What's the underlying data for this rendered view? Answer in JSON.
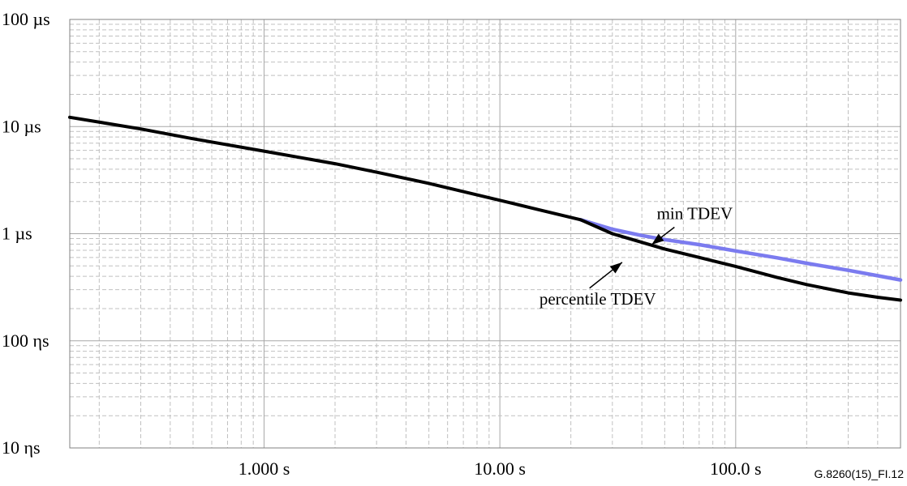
{
  "chart_data": {
    "type": "line",
    "title": "",
    "xlabel": "",
    "ylabel": "",
    "x_scale": "log",
    "y_scale": "log",
    "x_unit": "s",
    "y_unit": "s",
    "xlim": [
      0.15,
      500
    ],
    "ylim": [
      1e-08,
      0.0001
    ],
    "grid": true,
    "x_ticks": [
      {
        "value": 1,
        "label": "1.000 s"
      },
      {
        "value": 10,
        "label": "10.00 s"
      },
      {
        "value": 100,
        "label": "100.0 s"
      }
    ],
    "y_ticks": [
      {
        "value": 0.0001,
        "label": "100 µs"
      },
      {
        "value": 1e-05,
        "label": "10 µs"
      },
      {
        "value": 1e-06,
        "label": "1 µs"
      },
      {
        "value": 1e-07,
        "label": "100 ηs"
      },
      {
        "value": 1e-08,
        "label": "10 ηs"
      }
    ],
    "series": [
      {
        "color": "#7b7bef",
        "points": [
          [
            22,
            1.35e-06
          ],
          [
            30,
            1.1e-06
          ],
          [
            40,
            9.6e-07
          ],
          [
            50,
            8.8e-07
          ],
          [
            70,
            7.9e-07
          ],
          [
            100,
            6.9e-07
          ],
          [
            150,
            5.95e-07
          ],
          [
            200,
            5.3e-07
          ],
          [
            300,
            4.55e-07
          ],
          [
            400,
            4.05e-07
          ],
          [
            500,
            3.7e-07
          ]
        ]
      },
      {
        "color": "#000000",
        "points": [
          [
            0.15,
            1.22e-05
          ],
          [
            0.3,
            9.5e-06
          ],
          [
            0.5,
            7.7e-06
          ],
          [
            1,
            5.9e-06
          ],
          [
            2,
            4.5e-06
          ],
          [
            3,
            3.75e-06
          ],
          [
            5,
            2.95e-06
          ],
          [
            10,
            2.05e-06
          ],
          [
            15,
            1.65e-06
          ],
          [
            22,
            1.35e-06
          ],
          [
            30,
            1e-06
          ],
          [
            40,
            8.3e-07
          ],
          [
            50,
            7.2e-07
          ],
          [
            70,
            6e-07
          ],
          [
            100,
            4.95e-07
          ],
          [
            150,
            3.9e-07
          ],
          [
            200,
            3.35e-07
          ],
          [
            300,
            2.8e-07
          ],
          [
            400,
            2.55e-07
          ],
          [
            500,
            2.4e-07
          ]
        ]
      }
    ],
    "annotations": [
      {
        "text": "min TDEV",
        "arrow_from": [
          55,
          1.15e-06
        ],
        "arrow_to": [
          44,
          7.9e-07
        ]
      },
      {
        "text": "percentile TDEV",
        "arrow_from": [
          24,
          3.1e-07
        ],
        "arrow_to": [
          33,
          5.4e-07
        ]
      }
    ]
  },
  "figure_ref": "G.8260(15)_FI.12"
}
